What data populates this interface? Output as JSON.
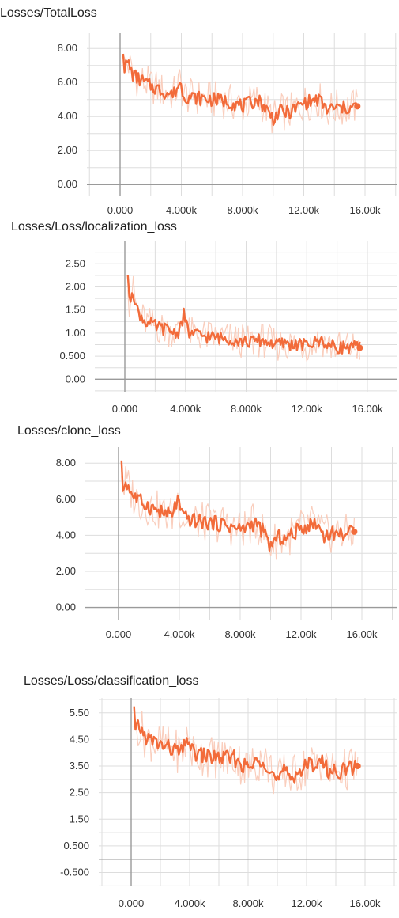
{
  "theme": {
    "line_color": "#f26b3a",
    "raw_color": "#f9c9b6",
    "grid_color": "#dddddd",
    "axis_color": "#9a9a9a"
  },
  "chart_data": [
    {
      "type": "line",
      "title": "Losses/TotalLoss",
      "xlim": [
        0,
        16000
      ],
      "ylim": [
        -0.5,
        8.8
      ],
      "xticks": [
        0,
        4000,
        8000,
        12000,
        16000
      ],
      "xtick_labels": [
        "0.000",
        "4.000k",
        "8.000k",
        "12.00k",
        "16.00k"
      ],
      "yticks": [
        0,
        2,
        4,
        6,
        8
      ],
      "ytick_labels": [
        "0.00",
        "2.00",
        "4.00",
        "6.00",
        "8.00"
      ],
      "grid": true,
      "series": [
        {
          "x": [
            200,
            300,
            500,
            800,
            1200,
            1600,
            2000,
            2500,
            3000,
            3500,
            3900,
            4200,
            5000,
            6000,
            7000,
            8000,
            8500,
            9000,
            9500,
            10000,
            10500,
            11000,
            12000,
            13000,
            13500,
            14000,
            15000,
            15500
          ],
          "y": [
            8.0,
            6.8,
            7.2,
            6.5,
            6.2,
            6.0,
            5.8,
            5.6,
            5.4,
            5.3,
            6.0,
            5.2,
            5.1,
            5.0,
            4.9,
            4.6,
            4.8,
            5.0,
            4.5,
            3.9,
            4.3,
            4.2,
            4.8,
            5.0,
            4.4,
            4.5,
            4.5,
            4.6
          ]
        }
      ]
    },
    {
      "type": "line",
      "title": "Losses/Loss/localization_loss",
      "xlim": [
        0,
        16000
      ],
      "ylim": [
        -0.2,
        2.95
      ],
      "xticks": [
        0,
        4000,
        8000,
        12000,
        16000
      ],
      "xtick_labels": [
        "0.000",
        "4.000k",
        "8.000k",
        "12.00k",
        "16.00k"
      ],
      "yticks": [
        0,
        0.5,
        1,
        1.5,
        2,
        2.5
      ],
      "ytick_labels": [
        "0.00",
        "0.500",
        "1.00",
        "1.50",
        "2.00",
        "2.50"
      ],
      "grid": true,
      "series": [
        {
          "x": [
            200,
            300,
            500,
            800,
            1200,
            1600,
            2000,
            2500,
            3000,
            3500,
            3900,
            4200,
            5000,
            6000,
            7000,
            8000,
            8500,
            9000,
            9500,
            10000,
            10500,
            11000,
            12000,
            13000,
            13500,
            14000,
            15000,
            15500
          ],
          "y": [
            2.3,
            1.6,
            2.0,
            1.5,
            1.3,
            1.2,
            1.15,
            1.1,
            1.05,
            1.0,
            1.4,
            1.0,
            0.95,
            0.9,
            0.88,
            0.8,
            0.82,
            0.85,
            0.8,
            0.75,
            0.78,
            0.76,
            0.74,
            0.85,
            0.72,
            0.7,
            0.7,
            0.68
          ]
        }
      ]
    },
    {
      "type": "line",
      "title": "Losses/clone_loss",
      "xlim": [
        0,
        16000
      ],
      "ylim": [
        -0.5,
        8.8
      ],
      "xticks": [
        0,
        4000,
        8000,
        12000,
        16000
      ],
      "xtick_labels": [
        "0.000",
        "4.000k",
        "8.000k",
        "12.00k",
        "16.00k"
      ],
      "yticks": [
        0,
        2,
        4,
        6,
        8
      ],
      "ytick_labels": [
        "0.00",
        "2.00",
        "4.00",
        "6.00",
        "8.00"
      ],
      "grid": true,
      "series": [
        {
          "x": [
            200,
            300,
            500,
            800,
            1200,
            1600,
            2000,
            2500,
            3000,
            3500,
            3900,
            4200,
            5000,
            6000,
            7000,
            8000,
            8500,
            9000,
            9500,
            10000,
            10500,
            11000,
            12000,
            13000,
            13500,
            14000,
            15000,
            15500
          ],
          "y": [
            7.8,
            6.5,
            7.0,
            6.4,
            6.0,
            5.8,
            5.6,
            5.4,
            5.2,
            5.1,
            6.0,
            5.0,
            4.8,
            4.7,
            4.6,
            4.3,
            4.5,
            4.7,
            4.2,
            3.4,
            3.9,
            3.8,
            4.4,
            4.7,
            4.0,
            4.1,
            4.1,
            4.2
          ]
        }
      ]
    },
    {
      "type": "line",
      "title": "Losses/Loss/classification_loss",
      "xlim": [
        0,
        16000
      ],
      "ylim": [
        -0.9,
        6.0
      ],
      "xticks": [
        0,
        4000,
        8000,
        12000,
        16000
      ],
      "xtick_labels": [
        "0.000",
        "4.000k",
        "8.000k",
        "12.00k",
        "16.00k"
      ],
      "yticks": [
        -0.5,
        0.5,
        1.5,
        2.5,
        3.5,
        4.5,
        5.5
      ],
      "ytick_labels": [
        "-0.500",
        "0.500",
        "1.50",
        "2.50",
        "3.50",
        "4.50",
        "5.50"
      ],
      "grid": true,
      "series": [
        {
          "x": [
            200,
            300,
            500,
            800,
            1200,
            1600,
            2000,
            2500,
            3000,
            3500,
            3900,
            4200,
            5000,
            6000,
            7000,
            8000,
            8500,
            9000,
            9500,
            10000,
            10500,
            11000,
            12000,
            13000,
            13500,
            14000,
            15000,
            15500
          ],
          "y": [
            5.6,
            4.6,
            5.1,
            4.7,
            4.5,
            4.4,
            4.3,
            4.2,
            4.1,
            4.0,
            4.6,
            4.0,
            3.9,
            3.8,
            3.8,
            3.4,
            3.6,
            3.8,
            3.4,
            2.9,
            3.3,
            3.1,
            3.5,
            3.7,
            3.3,
            3.3,
            3.4,
            3.5
          ]
        }
      ]
    }
  ]
}
